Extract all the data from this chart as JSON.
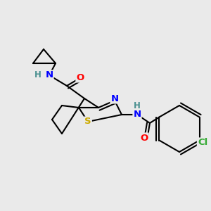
{
  "bg_color": "#eaeaea",
  "atom_colors": {
    "N": "#0000ff",
    "O": "#ff0000",
    "S": "#ccaa00",
    "Cl": "#33aa33",
    "C": "#000000",
    "H": "#4a9090"
  },
  "bond_width": 1.5,
  "font_size": 9.5,
  "figsize": [
    3.0,
    3.0
  ],
  "dpi": 100
}
